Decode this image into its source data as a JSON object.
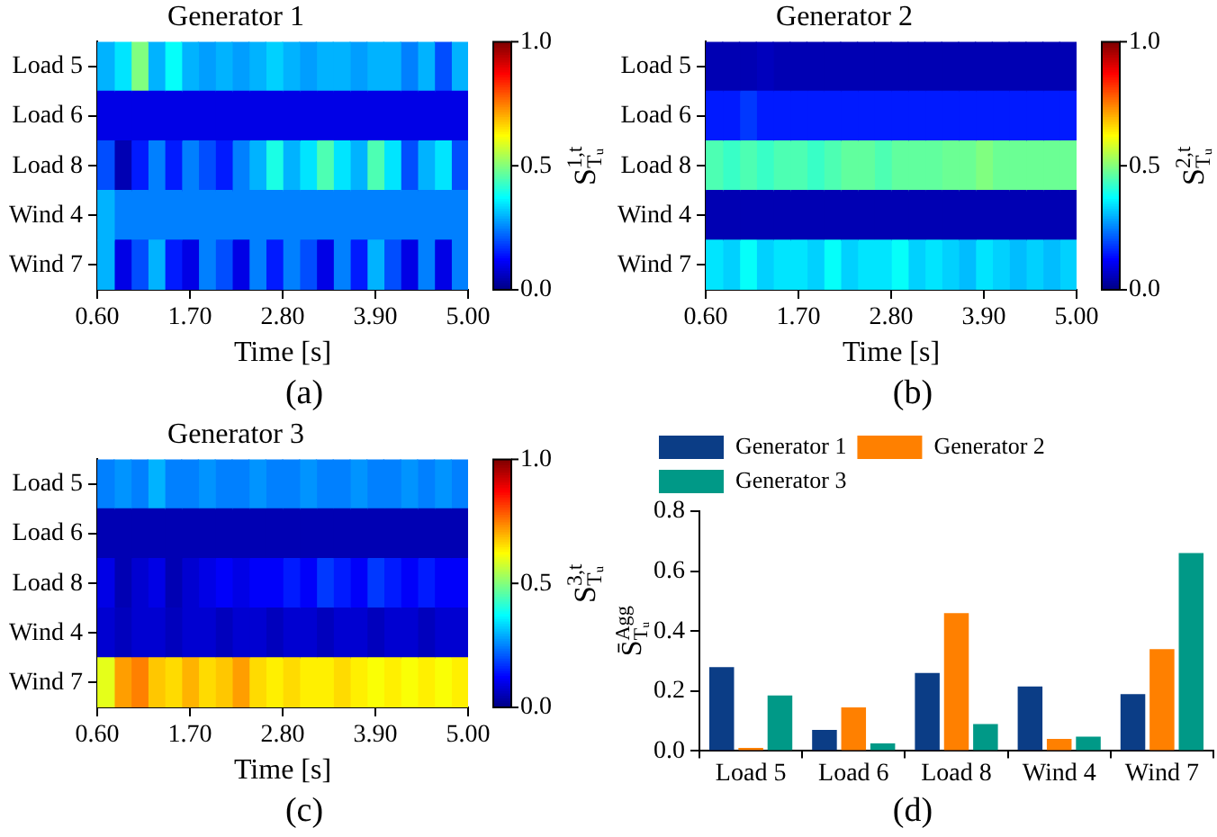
{
  "chart_data": [
    {
      "type": "heatmap",
      "title": "Generator 1",
      "xlabel": "Time [s]",
      "clabel": "S$^{1,t}$$_{Tᵤ}$",
      "annotations": [
        "(a)"
      ],
      "x": [
        0.7,
        0.9,
        1.1,
        1.3,
        1.5,
        1.7,
        1.9,
        2.1,
        2.3,
        2.5,
        2.7,
        2.9,
        3.1,
        3.3,
        3.5,
        3.7,
        3.9,
        4.1,
        4.3,
        4.5,
        4.7,
        4.9
      ],
      "y_categories": [
        "Load 5",
        "Load 6",
        "Load 8",
        "Wind 4",
        "Wind 7"
      ],
      "cells": [
        [
          0.3,
          0.35,
          0.5,
          0.3,
          0.38,
          0.3,
          0.28,
          0.3,
          0.28,
          0.3,
          0.33,
          0.3,
          0.28,
          0.3,
          0.3,
          0.28,
          0.3,
          0.3,
          0.25,
          0.3,
          0.2,
          0.3
        ],
        [
          0.1,
          0.1,
          0.1,
          0.1,
          0.1,
          0.1,
          0.1,
          0.1,
          0.1,
          0.1,
          0.1,
          0.1,
          0.1,
          0.1,
          0.1,
          0.1,
          0.1,
          0.1,
          0.1,
          0.1,
          0.1,
          0.1
        ],
        [
          0.2,
          0.05,
          0.15,
          0.25,
          0.15,
          0.25,
          0.2,
          0.15,
          0.25,
          0.3,
          0.4,
          0.3,
          0.35,
          0.45,
          0.35,
          0.3,
          0.45,
          0.35,
          0.2,
          0.3,
          0.35,
          0.2
        ],
        [
          0.3,
          0.25,
          0.25,
          0.25,
          0.25,
          0.25,
          0.25,
          0.25,
          0.25,
          0.25,
          0.25,
          0.25,
          0.25,
          0.25,
          0.25,
          0.25,
          0.25,
          0.25,
          0.25,
          0.25,
          0.25,
          0.25
        ],
        [
          0.3,
          0.1,
          0.2,
          0.3,
          0.15,
          0.1,
          0.25,
          0.2,
          0.1,
          0.25,
          0.15,
          0.25,
          0.2,
          0.1,
          0.25,
          0.15,
          0.3,
          0.2,
          0.1,
          0.25,
          0.1,
          0.25
        ]
      ],
      "xlim": [
        0.6,
        5.0
      ],
      "xticks": [
        {
          "value": 0.6,
          "label": "0.60"
        },
        {
          "value": 1.7,
          "label": "1.70"
        },
        {
          "value": 2.8,
          "label": "2.80"
        },
        {
          "value": 3.9,
          "label": "3.90"
        },
        {
          "value": 5.0,
          "label": "5.00"
        }
      ],
      "clim": [
        0,
        1
      ],
      "cticks": [
        {
          "value": 0,
          "label": "0.0"
        },
        {
          "value": 0.5,
          "label": "0.5"
        },
        {
          "value": 1,
          "label": "1.0"
        }
      ]
    },
    {
      "type": "heatmap",
      "title": "Generator 2",
      "xlabel": "Time [s]",
      "clabel": "S$^{2,t}$$_{Tᵤ}$",
      "annotations": [
        "(b)"
      ],
      "x": [
        0.7,
        0.9,
        1.1,
        1.3,
        1.5,
        1.7,
        1.9,
        2.1,
        2.3,
        2.5,
        2.7,
        2.9,
        3.1,
        3.3,
        3.5,
        3.7,
        3.9,
        4.1,
        4.3,
        4.5,
        4.7,
        4.9
      ],
      "y_categories": [
        "Load 5",
        "Load 6",
        "Load 8",
        "Wind 4",
        "Wind 7"
      ],
      "cells": [
        [
          0.05,
          0.05,
          0.05,
          0.06,
          0.05,
          0.05,
          0.05,
          0.05,
          0.05,
          0.05,
          0.05,
          0.05,
          0.05,
          0.05,
          0.05,
          0.05,
          0.05,
          0.05,
          0.05,
          0.05,
          0.05,
          0.05
        ],
        [
          0.15,
          0.15,
          0.18,
          0.15,
          0.15,
          0.15,
          0.15,
          0.15,
          0.15,
          0.15,
          0.15,
          0.15,
          0.15,
          0.15,
          0.15,
          0.15,
          0.15,
          0.15,
          0.15,
          0.15,
          0.15,
          0.15
        ],
        [
          0.45,
          0.43,
          0.45,
          0.43,
          0.45,
          0.45,
          0.43,
          0.45,
          0.47,
          0.47,
          0.45,
          0.47,
          0.47,
          0.47,
          0.48,
          0.48,
          0.5,
          0.48,
          0.48,
          0.48,
          0.48,
          0.48
        ],
        [
          0.05,
          0.05,
          0.05,
          0.05,
          0.05,
          0.05,
          0.05,
          0.05,
          0.05,
          0.05,
          0.05,
          0.05,
          0.05,
          0.05,
          0.05,
          0.05,
          0.05,
          0.05,
          0.05,
          0.05,
          0.05,
          0.05
        ],
        [
          0.35,
          0.33,
          0.38,
          0.33,
          0.35,
          0.35,
          0.33,
          0.38,
          0.33,
          0.35,
          0.35,
          0.38,
          0.33,
          0.35,
          0.33,
          0.31,
          0.35,
          0.33,
          0.31,
          0.33,
          0.31,
          0.33
        ]
      ],
      "xlim": [
        0.6,
        5.0
      ],
      "xticks": [
        {
          "value": 0.6,
          "label": "0.60"
        },
        {
          "value": 1.7,
          "label": "1.70"
        },
        {
          "value": 2.8,
          "label": "2.80"
        },
        {
          "value": 3.9,
          "label": "3.90"
        },
        {
          "value": 5.0,
          "label": "5.00"
        }
      ],
      "clim": [
        0,
        1
      ],
      "cticks": [
        {
          "value": 0,
          "label": "0.0"
        },
        {
          "value": 0.5,
          "label": "0.5"
        },
        {
          "value": 1,
          "label": "1.0"
        }
      ]
    },
    {
      "type": "heatmap",
      "title": "Generator 3",
      "xlabel": "Time [s]",
      "clabel": "S$^{3,t}$$_{Tᵤ}$",
      "annotations": [
        "(c)"
      ],
      "x": [
        0.7,
        0.9,
        1.1,
        1.3,
        1.5,
        1.7,
        1.9,
        2.1,
        2.3,
        2.5,
        2.7,
        2.9,
        3.1,
        3.3,
        3.5,
        3.7,
        3.9,
        4.1,
        4.3,
        4.5,
        4.7,
        4.9
      ],
      "y_categories": [
        "Load 5",
        "Load 6",
        "Load 8",
        "Wind 4",
        "Wind 7"
      ],
      "cells": [
        [
          0.25,
          0.27,
          0.25,
          0.3,
          0.25,
          0.25,
          0.27,
          0.25,
          0.25,
          0.27,
          0.25,
          0.25,
          0.27,
          0.25,
          0.25,
          0.27,
          0.25,
          0.25,
          0.27,
          0.25,
          0.27,
          0.25
        ],
        [
          0.05,
          0.05,
          0.05,
          0.05,
          0.05,
          0.05,
          0.05,
          0.05,
          0.05,
          0.05,
          0.05,
          0.05,
          0.05,
          0.05,
          0.05,
          0.05,
          0.05,
          0.05,
          0.05,
          0.05,
          0.05,
          0.05
        ],
        [
          0.1,
          0.05,
          0.08,
          0.1,
          0.05,
          0.08,
          0.1,
          0.12,
          0.1,
          0.12,
          0.12,
          0.15,
          0.12,
          0.18,
          0.15,
          0.12,
          0.18,
          0.15,
          0.12,
          0.15,
          0.12,
          0.12
        ],
        [
          0.08,
          0.06,
          0.08,
          0.08,
          0.06,
          0.08,
          0.08,
          0.06,
          0.08,
          0.08,
          0.06,
          0.08,
          0.08,
          0.06,
          0.08,
          0.08,
          0.06,
          0.08,
          0.08,
          0.06,
          0.08,
          0.08
        ],
        [
          0.6,
          0.72,
          0.75,
          0.68,
          0.66,
          0.7,
          0.66,
          0.68,
          0.72,
          0.66,
          0.64,
          0.66,
          0.64,
          0.64,
          0.66,
          0.64,
          0.62,
          0.64,
          0.62,
          0.64,
          0.62,
          0.64
        ]
      ],
      "xlim": [
        0.6,
        5.0
      ],
      "xticks": [
        {
          "value": 0.6,
          "label": "0.60"
        },
        {
          "value": 1.7,
          "label": "1.70"
        },
        {
          "value": 2.8,
          "label": "2.80"
        },
        {
          "value": 3.9,
          "label": "3.90"
        },
        {
          "value": 5.0,
          "label": "5.00"
        }
      ],
      "clim": [
        0,
        1
      ],
      "cticks": [
        {
          "value": 0,
          "label": "0.0"
        },
        {
          "value": 0.5,
          "label": "0.5"
        },
        {
          "value": 1,
          "label": "1.0"
        }
      ]
    },
    {
      "type": "bar",
      "ylabel": "S̄$^{Agg}$$_{Tᵤ}$",
      "annotations": [
        "(d)"
      ],
      "legend": "top left",
      "categories": [
        "Load 5",
        "Load 6",
        "Load 8",
        "Wind 4",
        "Wind 7"
      ],
      "series": [
        {
          "name": "Generator 1",
          "color": "#0b3d86",
          "values": [
            0.28,
            0.07,
            0.26,
            0.215,
            0.19
          ]
        },
        {
          "name": "Generator 2",
          "color": "#ff8000",
          "values": [
            0.01,
            0.145,
            0.46,
            0.04,
            0.34
          ]
        },
        {
          "name": "Generator 3",
          "color": "#009987",
          "values": [
            0.185,
            0.025,
            0.09,
            0.048,
            0.66
          ]
        }
      ],
      "ylim": [
        0,
        0.8
      ],
      "yticks": [
        {
          "value": 0,
          "label": "0.0"
        },
        {
          "value": 0.2,
          "label": "0.2"
        },
        {
          "value": 0.4,
          "label": "0.4"
        },
        {
          "value": 0.6,
          "label": "0.6"
        },
        {
          "value": 0.8,
          "label": "0.8"
        }
      ]
    }
  ]
}
